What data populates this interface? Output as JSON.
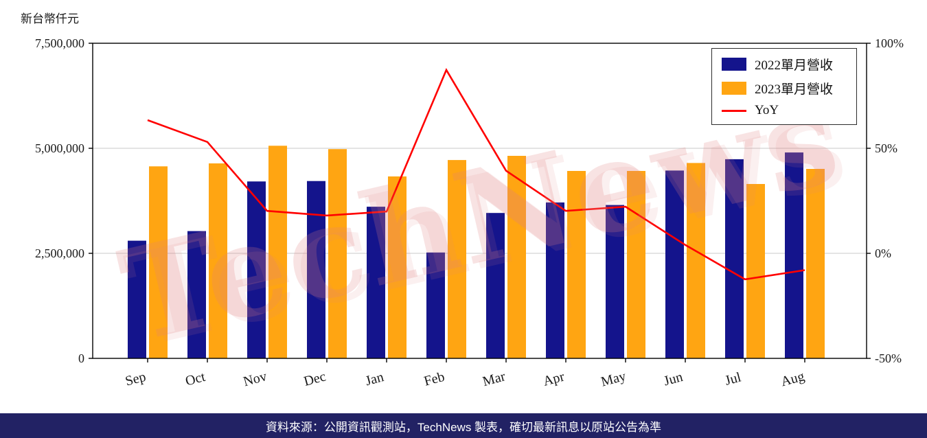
{
  "title": {
    "unit_label": "新台幣仟元"
  },
  "watermark": {
    "text": "TechNews"
  },
  "footer": {
    "text": "資料來源：公開資訊觀測站，TechNews 製表，確切最新訊息以原站公告為準",
    "bg_color": "#222264",
    "text_color": "#ffffff"
  },
  "chart_data": {
    "type": "bar+line",
    "categories": [
      "Sep",
      "Oct",
      "Nov",
      "Dec",
      "Jan",
      "Feb",
      "Mar",
      "Apr",
      "May",
      "Jun",
      "Jul",
      "Aug"
    ],
    "series": [
      {
        "name": "2022單月營收",
        "type": "bar",
        "axis": "left",
        "color": "#14148C",
        "values": [
          2800000,
          3030000,
          4210000,
          4220000,
          3610000,
          2520000,
          3460000,
          3710000,
          3650000,
          4470000,
          4740000,
          4900000
        ]
      },
      {
        "name": "2023單月營收",
        "type": "bar",
        "axis": "left",
        "color": "#FFA512",
        "values": [
          4570000,
          4640000,
          5060000,
          4980000,
          4330000,
          4720000,
          4820000,
          4460000,
          4460000,
          4650000,
          4150000,
          4510000
        ]
      },
      {
        "name": "YoY",
        "type": "line",
        "axis": "right",
        "color": "#FF0000",
        "values": [
          63.4,
          53.0,
          20.2,
          18.0,
          19.9,
          87.3,
          39.3,
          20.2,
          22.2,
          4.0,
          -12.4,
          -8.0
        ]
      }
    ],
    "ylabel_left": "新台幣仟元",
    "ylim_left": [
      0,
      7500000
    ],
    "yticks_left": [
      0,
      2500000,
      5000000,
      7500000
    ],
    "ylim_right": [
      -50,
      100
    ],
    "yticks_right": [
      -50,
      0,
      50,
      100
    ],
    "yticks_right_format": "percent",
    "legend_position": "top-right",
    "grid": "horizontal"
  }
}
